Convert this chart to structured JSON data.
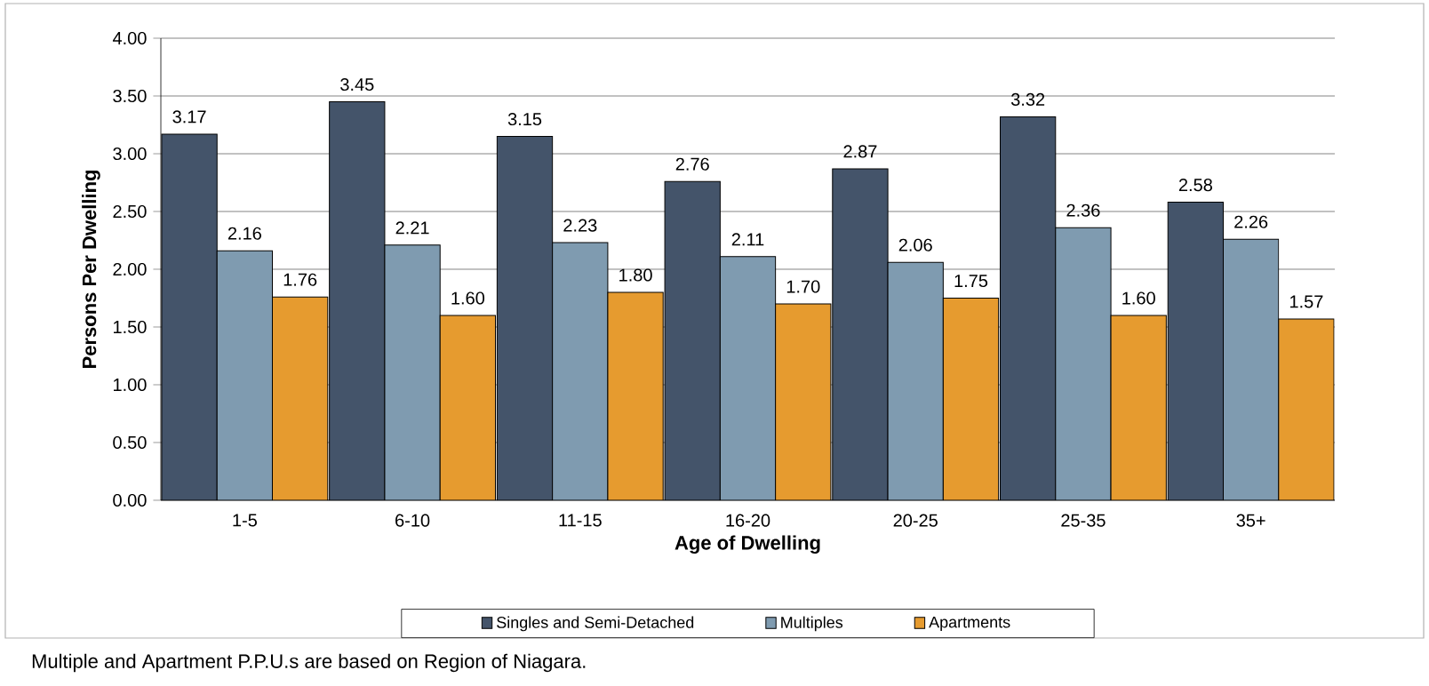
{
  "chart_data": {
    "type": "bar",
    "xlabel": "Age of Dwelling",
    "ylabel": "Persons Per Dwelling",
    "categories": [
      "1-5",
      "6-10",
      "11-15",
      "16-20",
      "20-25",
      "25-35",
      "35+"
    ],
    "series": [
      {
        "name": "Singles and Semi-Detached",
        "color": "#44546a",
        "values": [
          3.17,
          3.45,
          3.15,
          2.76,
          2.87,
          3.32,
          2.58
        ],
        "value_labels": [
          "3.17",
          "3.45",
          "3.15",
          "2.76",
          "2.87",
          "3.32",
          "2.58"
        ]
      },
      {
        "name": "Multiples",
        "color": "#7f9bb0",
        "values": [
          2.16,
          2.21,
          2.23,
          2.11,
          2.06,
          2.36,
          2.26
        ],
        "value_labels": [
          "2.16",
          "2.21",
          "2.23",
          "2.11",
          "2.06",
          "2.36",
          "2.26"
        ]
      },
      {
        "name": "Apartments",
        "color": "#e69b2f",
        "values": [
          1.76,
          1.6,
          1.8,
          1.7,
          1.75,
          1.6,
          1.57
        ],
        "value_labels": [
          "1.76",
          "1.60",
          "1.80",
          "1.70",
          "1.75",
          "1.60",
          "1.57"
        ]
      }
    ],
    "ylim": [
      0,
      4
    ],
    "yticks": [
      {
        "value": 0,
        "label": "0.00"
      },
      {
        "value": 0.5,
        "label": "0.50"
      },
      {
        "value": 1,
        "label": "1.00"
      },
      {
        "value": 1.5,
        "label": "1.50"
      },
      {
        "value": 2,
        "label": "2.00"
      },
      {
        "value": 2.5,
        "label": "2.50"
      },
      {
        "value": 3,
        "label": "3.00"
      },
      {
        "value": 3.5,
        "label": "3.50"
      },
      {
        "value": 4,
        "label": "4.00"
      }
    ],
    "grid": "y",
    "legend": "bottom",
    "annotations": [
      "Multiple and Apartment P.P.U.s are based on Region of Niagara."
    ]
  }
}
